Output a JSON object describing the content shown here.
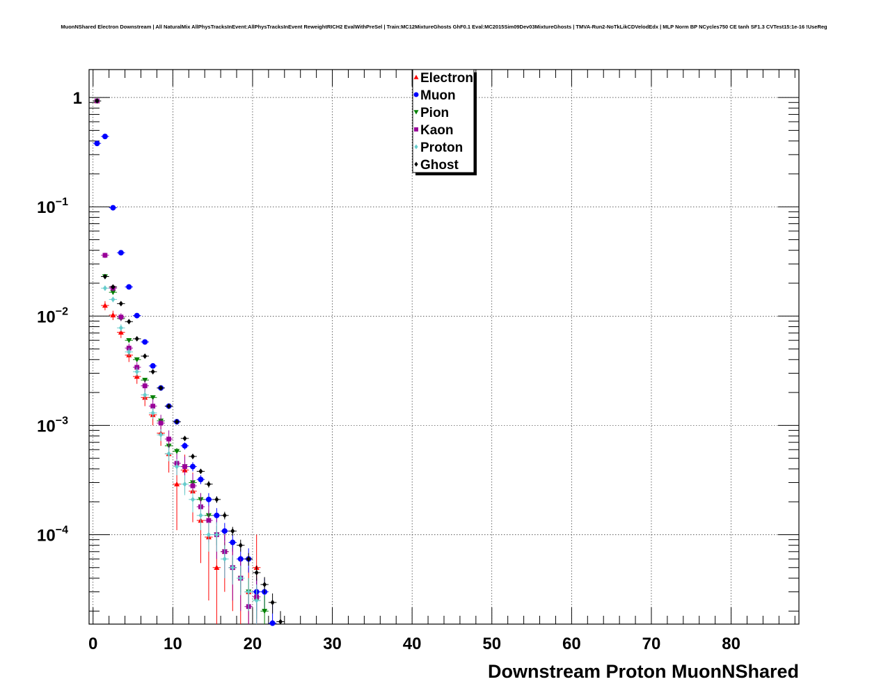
{
  "page": {
    "title": "MuonNShared Electron Downstream | All NaturalMix AllPhysTracksInEvent:AllPhysTracksInEvent ReweightRICH2 EvalWithPreSel | Train:MC12MixtureGhosts GhF0.1 Eval:MC2015Sim09Dev03MixtureGhosts | TMVA-Run2-NoTkLikCDVelodEdx | MLP Norm BP NCycles750 CE tanh SF1.3 CVTest15:1e-16 !UseReg"
  },
  "chart_data": {
    "type": "scatter",
    "xlabel": "Downstream Proton MuonNShared",
    "ylabel": "",
    "xlim": [
      -0.5,
      88.5
    ],
    "ylim": [
      1.52e-05,
      1.8
    ],
    "yscale": "log",
    "grid": true,
    "legend_position": "top-center",
    "x_ticks": [
      "0",
      "10",
      "20",
      "30",
      "40",
      "50",
      "60",
      "70",
      "80"
    ],
    "y_ticks": [
      {
        "base": "1",
        "exp": ""
      },
      {
        "base": "10",
        "exp": "−1"
      },
      {
        "base": "10",
        "exp": "−2"
      },
      {
        "base": "10",
        "exp": "−3"
      },
      {
        "base": "10",
        "exp": "−4"
      }
    ],
    "series": [
      {
        "name": "Electron",
        "color": "#ff0000",
        "marker": "triangle-up",
        "x": [
          0,
          1,
          2,
          3,
          4,
          5,
          6,
          7,
          8,
          9,
          10,
          11,
          12,
          13,
          14,
          15,
          16,
          17,
          18,
          19,
          20
        ],
        "y": [
          0.93,
          0.0125,
          0.0102,
          0.0071,
          0.0044,
          0.0028,
          0.0018,
          0.00125,
          0.00085,
          0.00055,
          0.00029,
          0.00039,
          0.00025,
          0.000135,
          9.5e-05,
          5e-05,
          7e-05,
          5e-05,
          4e-05,
          3e-05,
          5e-05
        ],
        "err": [
          0.02,
          0.0012,
          0.001,
          0.0008,
          0.0006,
          0.0004,
          0.0003,
          0.00025,
          0.0002,
          0.00018,
          0.00018,
          0.00015,
          0.00012,
          8e-05,
          7e-05,
          4.5e-05,
          4e-05,
          3e-05,
          2.5e-05,
          2e-05,
          5e-05
        ]
      },
      {
        "name": "Muon",
        "color": "#0000ff",
        "marker": "circle",
        "x": [
          0,
          1,
          2,
          3,
          4,
          5,
          6,
          7,
          8,
          9,
          10,
          11,
          12,
          13,
          14,
          15,
          16,
          17,
          18,
          19,
          20,
          21,
          22
        ],
        "y": [
          0.38,
          0.44,
          0.098,
          0.038,
          0.0185,
          0.0101,
          0.0058,
          0.0035,
          0.0022,
          0.0015,
          0.00108,
          0.00065,
          0.00042,
          0.00032,
          0.00021,
          0.00015,
          0.000108,
          8.5e-05,
          6e-05,
          6e-05,
          3e-05,
          3e-05,
          1.55e-05
        ],
        "err": [
          0.005,
          0.005,
          0.002,
          0.001,
          0.0005,
          0.0003,
          0.0002,
          0.00015,
          0.0001,
          8e-05,
          6e-05,
          5e-05,
          4e-05,
          3e-05,
          3e-05,
          2.5e-05,
          2e-05,
          1.5e-05,
          1.5e-05,
          1.5e-05,
          1e-05,
          1e-05,
          8e-06
        ]
      },
      {
        "name": "Pion",
        "color": "#008000",
        "marker": "triangle-down",
        "x": [
          0,
          1,
          2,
          3,
          4,
          5,
          6,
          7,
          8,
          9,
          10,
          11,
          12,
          13,
          14,
          15,
          16,
          17,
          18,
          19,
          20,
          21
        ],
        "y": [
          0.93,
          0.023,
          0.0165,
          0.0095,
          0.006,
          0.004,
          0.0026,
          0.0018,
          0.0011,
          0.00065,
          0.00058,
          0.00042,
          0.0003,
          0.00021,
          0.00015,
          0.0001,
          7e-05,
          5e-05,
          4e-05,
          3e-05,
          2.5e-05,
          2e-05
        ],
        "err": [
          0.005,
          0.0006,
          0.0004,
          0.0003,
          0.0002,
          0.00015,
          0.0001,
          8e-05,
          6e-05,
          5e-05,
          4e-05,
          4e-05,
          3e-05,
          3e-05,
          2e-05,
          2e-05,
          1.5e-05,
          1.2e-05,
          1e-05,
          1e-05,
          8e-06,
          8e-06
        ]
      },
      {
        "name": "Kaon",
        "color": "#990099",
        "marker": "square",
        "x": [
          0,
          1,
          2,
          3,
          4,
          5,
          6,
          7,
          8,
          9,
          10,
          11,
          12,
          13,
          14,
          15,
          16,
          17,
          18,
          19,
          20
        ],
        "y": [
          0.93,
          0.036,
          0.018,
          0.0098,
          0.0051,
          0.0034,
          0.0023,
          0.0015,
          0.00105,
          0.00075,
          0.00045,
          0.00042,
          0.00028,
          0.00018,
          0.000135,
          0.0001,
          7e-05,
          5e-05,
          4e-05,
          2.2e-05,
          2.7e-05
        ],
        "err": [
          0.01,
          0.002,
          0.0012,
          0.0008,
          0.0005,
          0.0004,
          0.0003,
          0.00025,
          0.0002,
          0.00015,
          0.0001,
          0.0001,
          8e-05,
          6e-05,
          5e-05,
          4e-05,
          3e-05,
          2.5e-05,
          2e-05,
          1e-05,
          1.5e-05
        ]
      },
      {
        "name": "Proton",
        "color": "#66cccc",
        "marker": "diamond",
        "x": [
          0,
          1,
          2,
          3,
          4,
          5,
          6,
          7,
          8,
          9,
          10,
          11,
          12,
          13,
          14,
          15,
          16,
          17,
          18,
          19,
          20
        ],
        "y": [
          0.93,
          0.018,
          0.0142,
          0.0078,
          0.0047,
          0.0031,
          0.0019,
          0.0013,
          0.00082,
          0.00055,
          0.00042,
          0.00029,
          0.00021,
          0.00015,
          0.0001,
          0.0001,
          6e-05,
          5e-05,
          4e-05,
          3e-05,
          2.5e-05
        ],
        "err": [
          0.005,
          0.001,
          0.0008,
          0.0006,
          0.0004,
          0.0003,
          0.0002,
          0.00015,
          0.0001,
          8e-05,
          7e-05,
          6e-05,
          5e-05,
          4e-05,
          3e-05,
          3e-05,
          2e-05,
          1.5e-05,
          1.2e-05,
          1e-05,
          1e-05
        ]
      },
      {
        "name": "Ghost",
        "color": "#000000",
        "marker": "diamond",
        "x": [
          0,
          1,
          2,
          3,
          4,
          5,
          6,
          7,
          8,
          9,
          10,
          11,
          12,
          13,
          14,
          15,
          16,
          17,
          18,
          19,
          20,
          21,
          22,
          23
        ],
        "y": [
          0.93,
          0.023,
          0.0185,
          0.013,
          0.0089,
          0.0062,
          0.0043,
          0.0031,
          0.0022,
          0.0015,
          0.00108,
          0.00076,
          0.00052,
          0.00038,
          0.00029,
          0.00021,
          0.00015,
          0.000108,
          8e-05,
          6e-05,
          4.5e-05,
          3.5e-05,
          2.4e-05,
          1.6e-05
        ],
        "err": [
          0.005,
          0.0005,
          0.0004,
          0.0003,
          0.0002,
          0.00015,
          0.0001,
          8e-05,
          6e-05,
          5e-05,
          4e-05,
          3e-05,
          3e-05,
          2e-05,
          2e-05,
          1.5e-05,
          1.2e-05,
          1e-05,
          1e-05,
          8e-06,
          7e-06,
          6e-06,
          5e-06,
          4e-06
        ]
      }
    ]
  }
}
